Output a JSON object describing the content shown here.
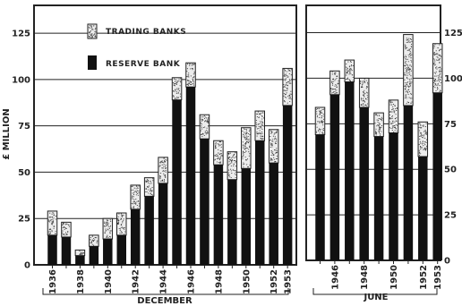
{
  "chart_data": [
    {
      "type": "bar",
      "stacked": true,
      "ylabel": "£ MILLION",
      "ylim": [
        0,
        140
      ],
      "yticks": [
        0,
        25,
        50,
        75,
        100,
        125
      ],
      "grid": true,
      "xlabel": "DECEMBER",
      "categories": [
        "1936",
        "1937",
        "1938",
        "1939",
        "1940",
        "1941",
        "1942",
        "1943",
        "1944",
        "1945",
        "1946",
        "1947",
        "1948",
        "1949",
        "1950",
        "1951",
        "1952",
        "1953"
      ],
      "tick_labels": [
        "1936",
        "",
        "1938",
        "",
        "1940",
        "",
        "1942",
        "",
        "1944",
        "",
        "1946",
        "",
        "1948",
        "",
        "1950",
        "",
        "1952",
        "1953"
      ],
      "series": [
        {
          "name": "RESERVE BANK",
          "color": "#111111",
          "values": [
            16,
            15,
            5,
            10,
            14,
            16,
            30,
            37,
            44,
            89,
            96,
            68,
            54,
            46,
            52,
            67,
            55,
            86
          ]
        },
        {
          "name": "TRADING BANKS",
          "color": "#e6e6e6",
          "values": [
            13,
            8,
            3,
            6,
            11,
            12,
            13,
            10,
            14,
            12,
            13,
            13,
            13,
            15,
            22,
            16,
            18,
            20
          ]
        }
      ],
      "legend": {
        "placement": "top-left",
        "items": [
          {
            "label": "TRADING BANKS",
            "color": "#e6e6e6",
            "pattern": "stipple"
          },
          {
            "label": "RESERVE BANK",
            "color": "#111111",
            "pattern": "solid"
          }
        ]
      }
    },
    {
      "type": "bar",
      "stacked": true,
      "ylim": [
        0,
        140
      ],
      "yticks": [
        0,
        25,
        50,
        75,
        100,
        125
      ],
      "grid": true,
      "xlabel": "JUNE",
      "categories": [
        "1945",
        "1946",
        "1947",
        "1948",
        "1949",
        "1950",
        "1951",
        "1952",
        "1953"
      ],
      "tick_labels": [
        "",
        "1946",
        "",
        "1948",
        "",
        "1950",
        "",
        "1952",
        "1953"
      ],
      "series": [
        {
          "name": "RESERVE BANK",
          "color": "#111111",
          "values": [
            69,
            91,
            98,
            84,
            68,
            70,
            85,
            57,
            92
          ]
        },
        {
          "name": "TRADING BANKS",
          "color": "#e6e6e6",
          "values": [
            15,
            13,
            12,
            16,
            13,
            18,
            39,
            19,
            27
          ]
        }
      ]
    }
  ]
}
